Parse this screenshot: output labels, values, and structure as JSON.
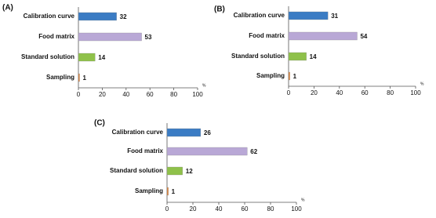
{
  "chart_data": [
    {
      "type": "barh",
      "panel_label": "(A)",
      "categories": [
        "Calibration curve",
        "Food matrix",
        "Standard solution",
        "Sampling"
      ],
      "values": [
        32,
        53,
        14,
        1
      ],
      "colors": [
        "#3b7cc4",
        "#b9a8d6",
        "#8fc14a",
        "#e0843a"
      ],
      "xlim": [
        0,
        100
      ],
      "xticks": [
        0,
        20,
        40,
        60,
        80,
        100
      ],
      "xlabel": "%"
    },
    {
      "type": "barh",
      "panel_label": "(B)",
      "categories": [
        "Calibration curve",
        "Food matrix",
        "Standard solution",
        "Sampling"
      ],
      "values": [
        31,
        54,
        14,
        1
      ],
      "colors": [
        "#3b7cc4",
        "#b9a8d6",
        "#8fc14a",
        "#e0843a"
      ],
      "xlim": [
        0,
        100
      ],
      "xticks": [
        0,
        20,
        40,
        60,
        80,
        100
      ],
      "xlabel": "%"
    },
    {
      "type": "barh",
      "panel_label": "(C)",
      "categories": [
        "Calibration curve",
        "Food matrix",
        "Standard solution",
        "Sampling"
      ],
      "values": [
        26,
        62,
        12,
        1
      ],
      "colors": [
        "#3b7cc4",
        "#b9a8d6",
        "#8fc14a",
        "#e0843a"
      ],
      "xlim": [
        0,
        100
      ],
      "xticks": [
        0,
        20,
        40,
        60,
        80,
        100
      ],
      "xlabel": "%"
    }
  ]
}
